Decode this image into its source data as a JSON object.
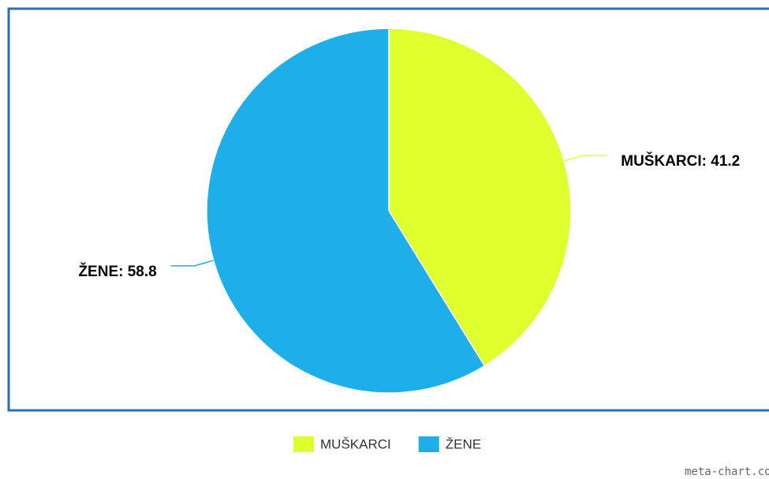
{
  "chart_data": {
    "type": "pie",
    "categories": [
      "MUŠKARCI",
      "ŽENE"
    ],
    "values": [
      41.2,
      58.8
    ],
    "value_labels": [
      "MUŠKARCI: 41.2",
      "ŽENE: 58.8"
    ],
    "colors": [
      "#dfff2f",
      "#1eaeea"
    ],
    "legend": "bottom",
    "credit": "meta-chart.com"
  }
}
